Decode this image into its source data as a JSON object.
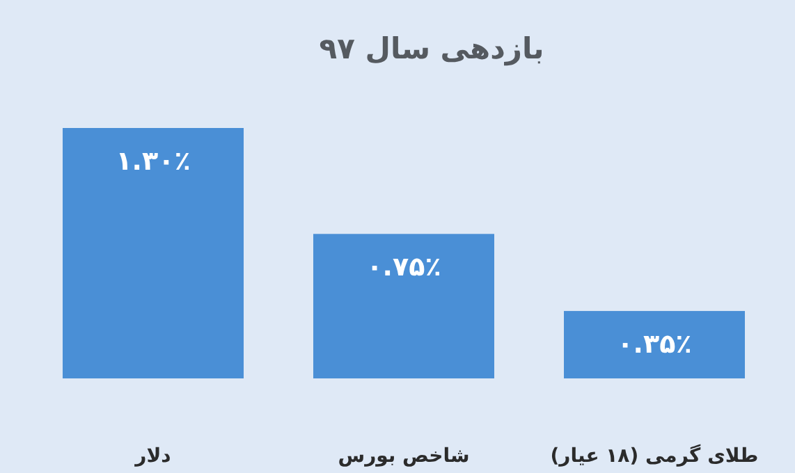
{
  "chart_data": {
    "type": "bar",
    "title": "بازدهی سال ۹۷",
    "categories": [
      "دلار",
      "شاخص بورس",
      "طلای گرمی (۱۸ عیار)"
    ],
    "values": [
      1.3,
      0.75,
      0.35
    ],
    "value_labels": [
      "۱.۳۰٪",
      "۰.۷۵٪",
      "۰.۳۵٪"
    ],
    "color": "#4a8fd6"
  }
}
